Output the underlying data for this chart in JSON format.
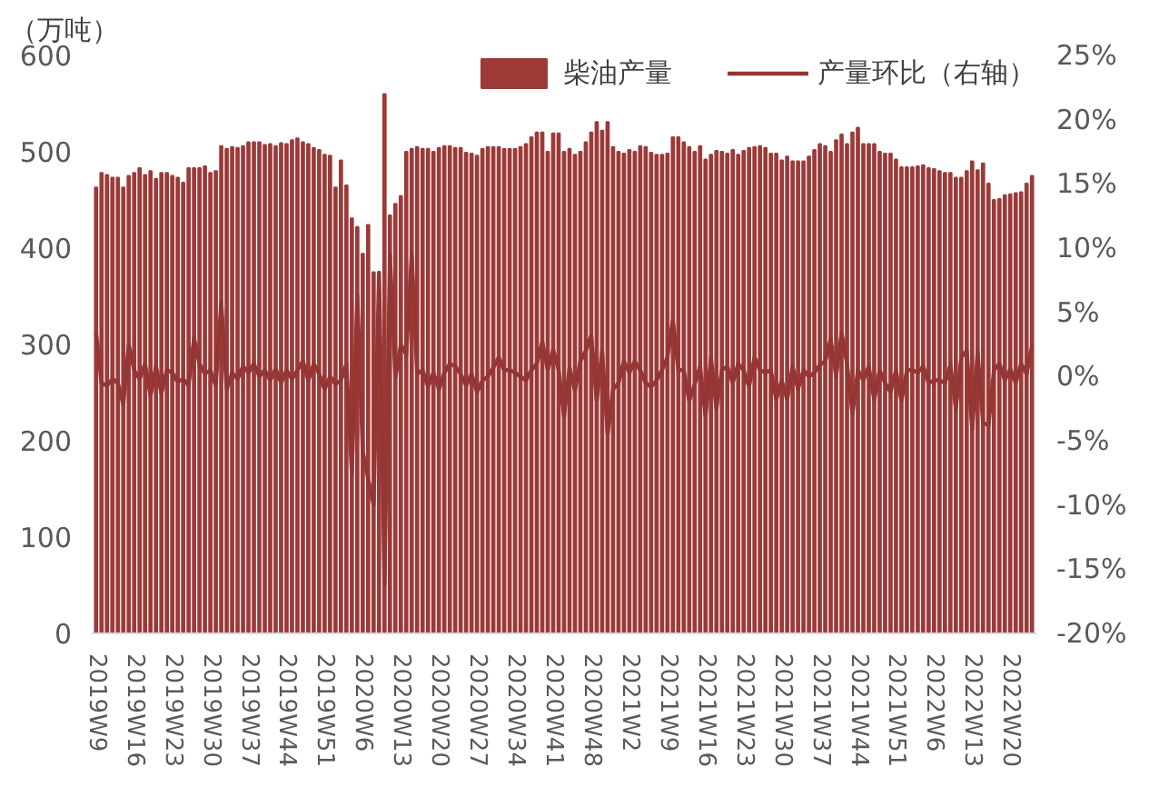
{
  "chart_data": {
    "type": "bar",
    "ylabel": "（万吨）",
    "legend": "top right",
    "categories": [
      "2019W9",
      null,
      null,
      null,
      null,
      null,
      null,
      "2019W16",
      null,
      null,
      null,
      null,
      null,
      null,
      "2019W23",
      null,
      null,
      null,
      null,
      null,
      null,
      "2019W30",
      null,
      null,
      null,
      null,
      null,
      null,
      "2019W37",
      null,
      null,
      null,
      null,
      null,
      null,
      "2019W44",
      null,
      null,
      null,
      null,
      null,
      null,
      "2019W51",
      null,
      null,
      null,
      null,
      null,
      null,
      "2020W6",
      null,
      null,
      null,
      null,
      null,
      null,
      "2020W13",
      null,
      null,
      null,
      null,
      null,
      null,
      "2020W20",
      null,
      null,
      null,
      null,
      null,
      null,
      "2020W27",
      null,
      null,
      null,
      null,
      null,
      null,
      "2020W34",
      null,
      null,
      null,
      null,
      null,
      null,
      "2020W41",
      null,
      null,
      null,
      null,
      null,
      null,
      "2020W48",
      null,
      null,
      null,
      null,
      null,
      null,
      "2021W2",
      null,
      null,
      null,
      null,
      null,
      null,
      "2021W9",
      null,
      null,
      null,
      null,
      null,
      null,
      "2021W16",
      null,
      null,
      null,
      null,
      null,
      null,
      "2021W23",
      null,
      null,
      null,
      null,
      null,
      null,
      "2021W30",
      null,
      null,
      null,
      null,
      null,
      null,
      "2021W37",
      null,
      null,
      null,
      null,
      null,
      null,
      "2021W44",
      null,
      null,
      null,
      null,
      null,
      null,
      "2021W51",
      null,
      null,
      null,
      null,
      null,
      null,
      "2022W6",
      null,
      null,
      null,
      null,
      null,
      null,
      "2022W13",
      null,
      null,
      null,
      null,
      null,
      null,
      "2022W20",
      null,
      null,
      null,
      null
    ],
    "series": [
      {
        "name": "柴油产量",
        "color": "#9c3a38",
        "values": [
          463,
          478,
          476,
          473,
          473,
          463,
          475,
          478,
          483,
          476,
          480,
          472,
          478,
          478,
          475,
          473,
          468,
          483,
          483,
          483,
          485,
          478,
          480,
          506,
          503,
          505,
          504,
          506,
          510,
          510,
          510,
          507,
          508,
          506,
          509,
          508,
          512,
          514,
          510,
          508,
          504,
          502,
          497,
          496,
          463,
          491,
          465,
          431,
          422,
          394,
          424,
          375,
          356,
          560,
          434,
          446,
          454,
          500,
          503,
          505,
          503,
          503,
          500,
          504,
          506,
          506,
          504,
          504,
          499,
          498,
          496,
          503,
          505,
          505,
          505,
          503,
          503,
          503,
          505,
          508,
          515,
          520,
          520,
          500,
          519,
          519,
          500,
          503,
          497,
          500,
          510,
          520,
          531,
          522,
          531,
          505,
          500,
          498,
          502,
          500,
          506,
          505,
          499,
          497,
          497,
          498,
          515,
          515,
          510,
          505,
          500,
          506,
          492,
          497,
          501,
          500,
          498,
          502,
          497,
          501,
          504,
          505,
          506,
          504,
          498,
          498,
          491,
          495,
          490,
          490,
          490,
          495,
          502,
          508,
          506,
          500,
          512,
          518,
          508,
          520,
          525,
          508,
          508,
          508,
          500,
          498,
          498,
          492,
          484,
          484,
          484,
          485,
          486,
          483,
          482,
          480,
          478,
          478,
          473,
          473,
          480,
          490,
          481,
          488,
          467,
          450,
          451,
          455,
          456,
          457,
          458,
          467,
          475
        ]
      },
      {
        "name": "产量环比（右轴）",
        "type": "line",
        "axis": "y2",
        "color": "#943634",
        "values": [
          3.4,
          -0.5,
          -0.7,
          -0.2,
          -0.5,
          -2.2,
          2.5,
          0.5,
          -0.2,
          1.0,
          -1.5,
          0.8,
          -1.3,
          0.5,
          0.3,
          -0.4,
          -0.2,
          -0.7,
          3.0,
          1.0,
          0.2,
          0.5,
          -0.7,
          5.8,
          -1.0,
          0.3,
          -0.2,
          0.8,
          0.3,
          1.0,
          0,
          0.5,
          -0.3,
          0.6,
          -0.5,
          0.5,
          -0.2,
          0.5,
          1.2,
          -0.3,
          1.0,
          0.2,
          -1.0,
          0,
          -0.6,
          -0.3,
          1.0,
          -7.6,
          6.3,
          -5.8,
          -8.0,
          -10.0,
          8.1,
          -16.2,
          9.5,
          -0.1,
          2.5,
          1.7,
          9.5,
          0.2,
          0.5,
          -0.8,
          0.3,
          -1.0,
          0.3,
          1.0,
          0.8,
          0.2,
          -0.7,
          0.2,
          -1.2,
          -0.3,
          0,
          0.7,
          1.5,
          0.5,
          0.5,
          0.3,
          0,
          -0.3,
          0.5,
          1.0,
          2.7,
          0.5,
          2.1,
          0.5,
          -3.1,
          0.7,
          -1.1,
          1.2,
          2,
          3.2,
          -1.9,
          2,
          -4.5,
          -1,
          -0.5,
          1.2,
          0.3,
          1.2,
          0.5,
          -0.5,
          -0.8,
          -0.3,
          0.5,
          1.5,
          4.4,
          0.5,
          0.5,
          -1.9,
          -0.6,
          0.8,
          -3.1,
          1.5,
          -2.5,
          0.5,
          0.8,
          -0.5,
          1.0,
          0.5,
          -0.8,
          1.5,
          0.5,
          0.3,
          0.5,
          -1.8,
          -0.3,
          -1.8,
          0.8,
          -1.0,
          0.5,
          0,
          0.3,
          0.9,
          1.2,
          2.9,
          0,
          3.4,
          1.0,
          -2.9,
          0.5,
          -0.3,
          0.8,
          -1.8,
          0.5,
          -0.5,
          -1.2,
          0.5,
          -1.9,
          0.5,
          0.5,
          0.3,
          0.8,
          -0.5,
          -0.3,
          -0.3,
          -0.5,
          0.9,
          -2.5,
          1.5,
          2.0,
          -4.1,
          1.9,
          -3.6,
          -3.8,
          0.5,
          1.0,
          -0.3,
          0.6,
          -0.5,
          1.0,
          0.2,
          2.4
        ]
      }
    ],
    "ylim": [
      0,
      600
    ],
    "yticks": [
      0,
      100,
      200,
      300,
      400,
      500,
      600
    ],
    "y2lim": [
      -20,
      25
    ],
    "y2ticks": [
      {
        "value": -20,
        "label": "-20%"
      },
      {
        "value": -15,
        "label": "-15%"
      },
      {
        "value": -10,
        "label": "-10%"
      },
      {
        "value": -5,
        "label": "-5%"
      },
      {
        "value": 0,
        "label": "0%"
      },
      {
        "value": 5,
        "label": "5%"
      },
      {
        "value": 10,
        "label": "10%"
      },
      {
        "value": 15,
        "label": "15%"
      },
      {
        "value": 20,
        "label": "20%"
      },
      {
        "value": 25,
        "label": "25%"
      }
    ]
  }
}
